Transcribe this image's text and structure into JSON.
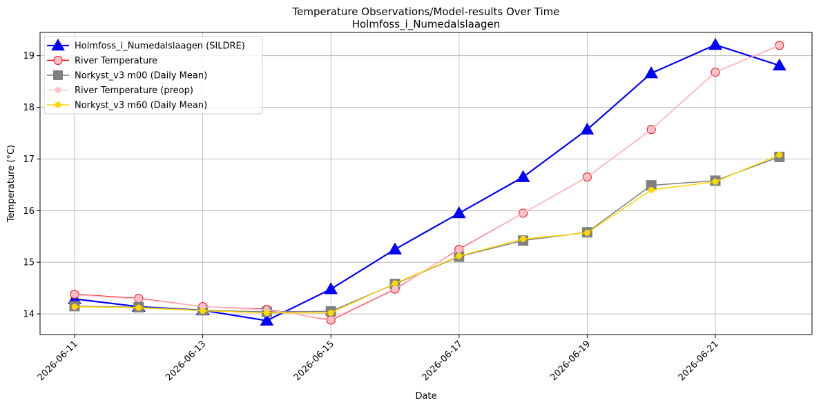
{
  "chart_data": {
    "type": "line",
    "title": "Temperature Observations/Model-results Over Time",
    "subtitle": "Holmfoss_i_Numedalslaagen",
    "xlabel": "Date",
    "ylabel": "Temperature (°C)",
    "x": [
      "2026-06-11",
      "2026-06-12",
      "2026-06-13",
      "2026-06-14",
      "2026-06-15",
      "2026-06-16",
      "2026-06-17",
      "2026-06-18",
      "2026-06-19",
      "2026-06-20",
      "2026-06-21",
      "2026-06-22"
    ],
    "x_ticks": [
      "2026-06-11",
      "2026-06-13",
      "2026-06-15",
      "2026-06-17",
      "2026-06-19",
      "2026-06-21"
    ],
    "ylim": [
      13.6,
      19.45
    ],
    "y_ticks": [
      14,
      15,
      16,
      17,
      18,
      19
    ],
    "grid": true,
    "legend_position": "top-left",
    "series": [
      {
        "name": "Holmfoss_i_Numedalslaagen (SILDRE)",
        "color": "#0000ff",
        "marker": "triangle",
        "values": [
          14.29,
          14.14,
          14.07,
          13.87,
          14.48,
          15.25,
          15.95,
          16.65,
          17.57,
          18.66,
          19.21,
          18.81
        ]
      },
      {
        "name": "River Temperature",
        "color": "#ff0000",
        "marker": "circle",
        "values": [
          14.38,
          14.3,
          14.14,
          14.09,
          13.88,
          14.48,
          15.25,
          15.95,
          16.65,
          17.57,
          18.68,
          19.2
        ]
      },
      {
        "name": "Norkyst_v3 m00 (Daily Mean)",
        "color": "#808080",
        "marker": "square",
        "values": [
          14.15,
          14.13,
          14.07,
          14.04,
          14.05,
          14.58,
          15.11,
          15.42,
          15.58,
          16.49,
          16.58,
          17.04
        ]
      },
      {
        "name": "River Temperature (preop)",
        "color": "#ffc0cb",
        "marker": "circle-small",
        "values": [
          14.37,
          14.29,
          14.14,
          14.08,
          13.89,
          14.49,
          15.24,
          15.95,
          16.65,
          17.57,
          18.68,
          19.2
        ]
      },
      {
        "name": "Norkyst_v3 m60 (Daily Mean)",
        "color": "#ffd700",
        "marker": "circle-small",
        "values": [
          14.14,
          14.12,
          14.06,
          14.02,
          14.02,
          14.59,
          15.12,
          15.45,
          15.57,
          16.4,
          16.56,
          17.08
        ]
      }
    ]
  }
}
